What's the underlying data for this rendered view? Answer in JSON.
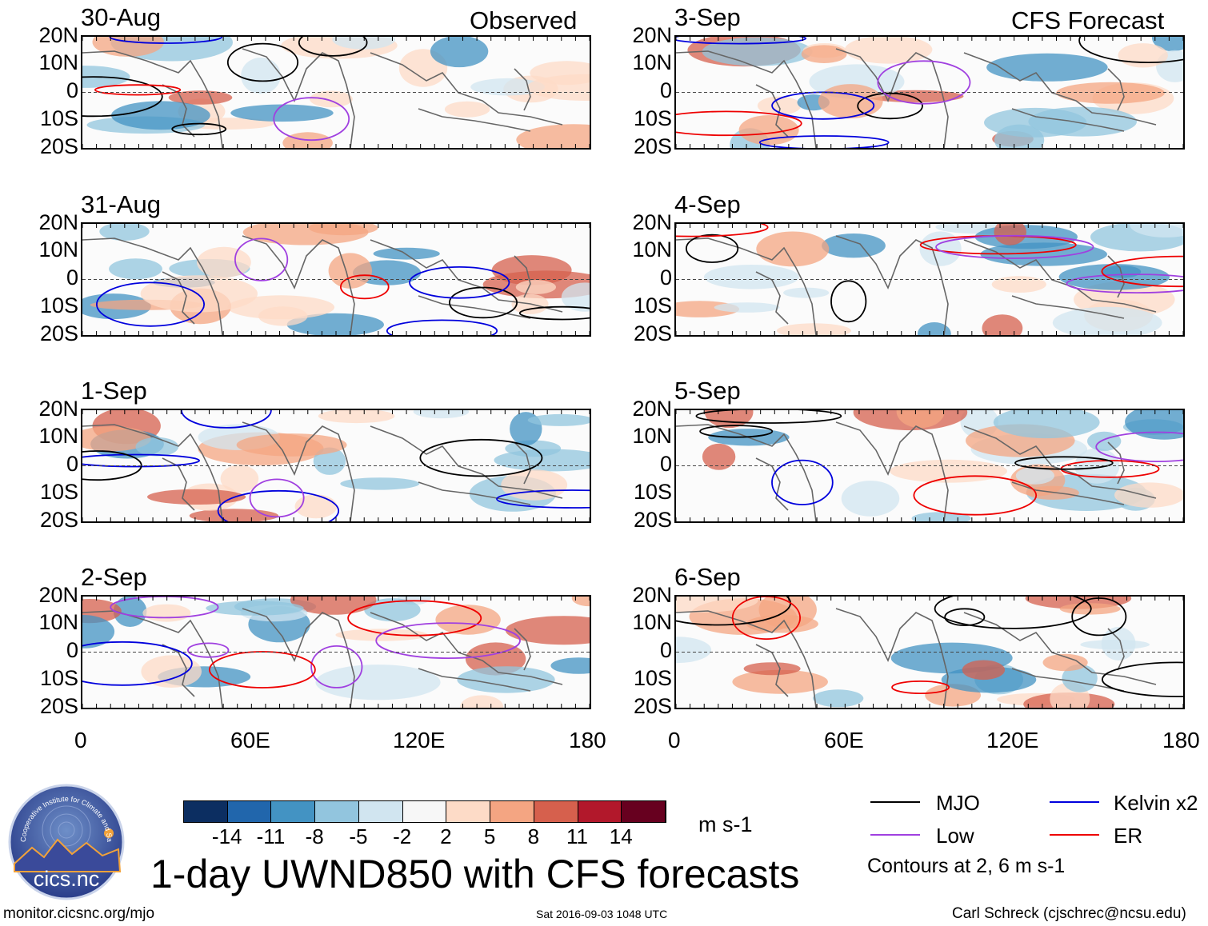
{
  "header": {
    "observed_label": "Observed",
    "forecast_label": "CFS Forecast"
  },
  "panels": {
    "left": [
      {
        "date": "30-Aug"
      },
      {
        "date": "31-Aug"
      },
      {
        "date": "1-Sep"
      },
      {
        "date": "2-Sep"
      }
    ],
    "right": [
      {
        "date": "3-Sep"
      },
      {
        "date": "4-Sep"
      },
      {
        "date": "5-Sep"
      },
      {
        "date": "6-Sep"
      }
    ]
  },
  "axes": {
    "lat_labels": [
      "20N",
      "10N",
      "0",
      "10S",
      "20S"
    ],
    "lon_labels": [
      "0",
      "60E",
      "120E",
      "180"
    ]
  },
  "colorbar": {
    "ticks": [
      "-14",
      "-11",
      "-8",
      "-5",
      "-2",
      "2",
      "5",
      "8",
      "11",
      "14"
    ],
    "colors": [
      "#0c2e61",
      "#2166ac",
      "#4393c3",
      "#92c5de",
      "#d1e5f0",
      "#f7f7f7",
      "#fddbc7",
      "#f4a582",
      "#d6604d",
      "#b2182b",
      "#67001f"
    ],
    "units": "m s-1"
  },
  "legend": {
    "items": [
      {
        "label": "MJO",
        "color": "#000000"
      },
      {
        "label": "Kelvin x2",
        "color": "#0000dd"
      },
      {
        "label": "Low",
        "color": "#a040e0"
      },
      {
        "label": "ER",
        "color": "#ee0000"
      }
    ],
    "note": "Contours at 2, 6 m s-1"
  },
  "title": "1-day UWND850 with CFS forecasts",
  "footer": {
    "website": "monitor.cicsnc.org/mjo",
    "timestamp": "Sat 2016-09-03 1048 UTC",
    "author": "Carl Schreck (cjschrec@ncsu.edu)"
  },
  "logo": {
    "org_text": "Cooperative Institute for Climate and Satellites",
    "name": "cics.nc"
  }
}
